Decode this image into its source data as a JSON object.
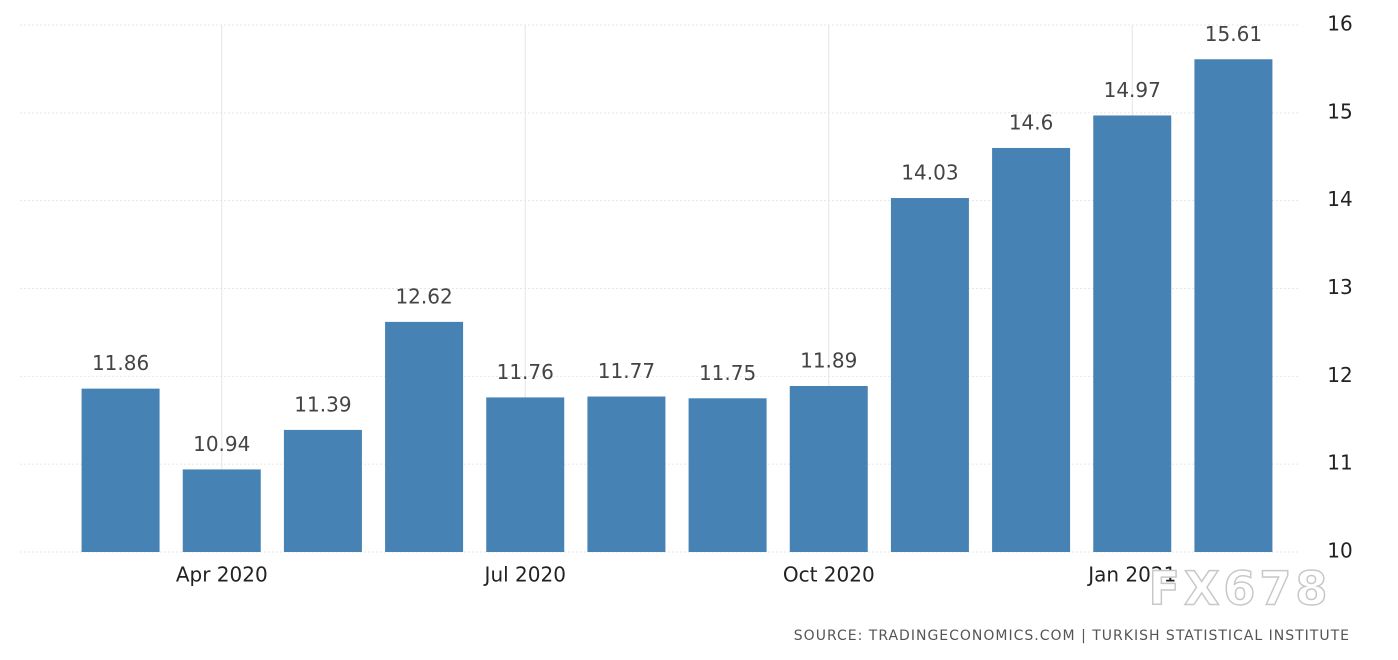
{
  "chart_data": {
    "type": "bar",
    "categories": [
      null,
      "Apr 2020",
      null,
      null,
      "Jul 2020",
      null,
      null,
      "Oct 2020",
      null,
      null,
      "Jan 2021",
      null
    ],
    "values": [
      11.86,
      10.94,
      11.39,
      12.62,
      11.76,
      11.77,
      11.75,
      11.89,
      14.03,
      14.6,
      14.97,
      15.61
    ],
    "color": "#4682b4",
    "ylim": [
      10,
      16
    ],
    "yticks": [
      10,
      11,
      12,
      13,
      14,
      15,
      16
    ],
    "grid": true,
    "source": "SOURCE: TRADINGECONOMICS.COM  |  TURKISH STATISTICAL INSTITUTE",
    "watermark": "FX678"
  }
}
